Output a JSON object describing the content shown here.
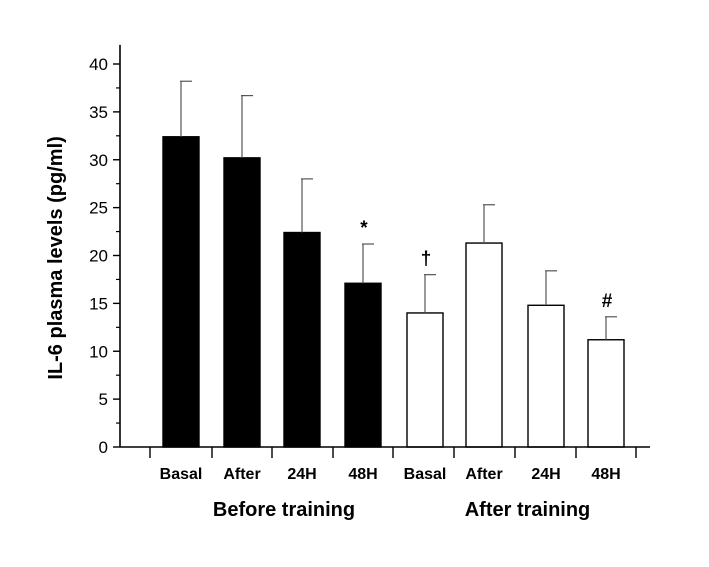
{
  "chart_data": {
    "type": "bar",
    "ylabel": "IL-6 plasma levels (pg/ml)",
    "xlabel": "",
    "ylim": [
      0,
      42
    ],
    "yticks": [
      "0",
      "5",
      "10",
      "15",
      "20",
      "25",
      "30",
      "35",
      "40"
    ],
    "grid": false,
    "categories": [
      "Basal",
      "After",
      "24H",
      "48H",
      "Basal",
      "After",
      "24H",
      "48H"
    ],
    "groups": [
      {
        "label": "Before training",
        "start": 0,
        "end": 3
      },
      {
        "label": "After training",
        "start": 4,
        "end": 7
      }
    ],
    "values": [
      32.4,
      30.2,
      22.4,
      17.1,
      14.0,
      21.3,
      14.8,
      11.2
    ],
    "errors": [
      5.8,
      6.5,
      5.6,
      4.1,
      4.0,
      4.0,
      3.6,
      2.4
    ],
    "fills": [
      "#000000",
      "#000000",
      "#000000",
      "#000000",
      "#ffffff",
      "#ffffff",
      "#ffffff",
      "#ffffff"
    ],
    "annotations": [
      "",
      "",
      "",
      "*",
      "†",
      "",
      "",
      "#"
    ]
  }
}
